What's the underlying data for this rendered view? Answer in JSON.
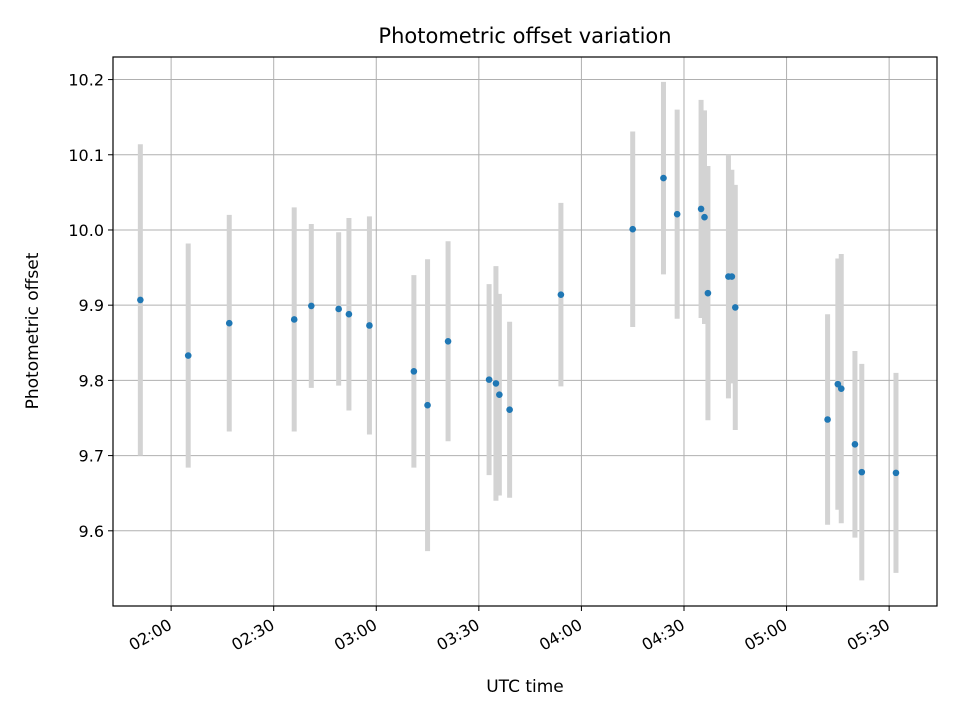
{
  "chart_data": {
    "type": "scatter",
    "title": "Photometric offset variation",
    "xlabel": "UTC time",
    "ylabel": "Photometric offset",
    "x_ticks": [
      "02:00",
      "02:30",
      "03:00",
      "03:30",
      "04:00",
      "04:30",
      "05:00",
      "05:30"
    ],
    "y_ticks": [
      "9.6",
      "9.7",
      "9.8",
      "9.9",
      "10.0",
      "10.1",
      "10.2"
    ],
    "xlim": [
      "01:43",
      "05:44"
    ],
    "ylim": [
      9.5,
      10.23
    ],
    "grid": true,
    "marker_color": "#1f77b4",
    "errorbar_color": "#d3d3d3",
    "series": [
      {
        "points": [
          {
            "t": "01:51",
            "y": 9.907,
            "err": 0.207
          },
          {
            "t": "02:05",
            "y": 9.833,
            "err": 0.149
          },
          {
            "t": "02:17",
            "y": 9.876,
            "err": 0.144
          },
          {
            "t": "02:36",
            "y": 9.881,
            "err": 0.149
          },
          {
            "t": "02:41",
            "y": 9.899,
            "err": 0.109
          },
          {
            "t": "02:49",
            "y": 9.895,
            "err": 0.102
          },
          {
            "t": "02:52",
            "y": 9.888,
            "err": 0.128
          },
          {
            "t": "02:58",
            "y": 9.873,
            "err": 0.145
          },
          {
            "t": "03:11",
            "y": 9.812,
            "err": 0.128
          },
          {
            "t": "03:15",
            "y": 9.767,
            "err": 0.194
          },
          {
            "t": "03:21",
            "y": 9.852,
            "err": 0.133
          },
          {
            "t": "03:33",
            "y": 9.801,
            "err": 0.127
          },
          {
            "t": "03:35",
            "y": 9.796,
            "err": 0.156
          },
          {
            "t": "03:36",
            "y": 9.781,
            "err": 0.134
          },
          {
            "t": "03:39",
            "y": 9.761,
            "err": 0.117
          },
          {
            "t": "03:54",
            "y": 9.914,
            "err": 0.122
          },
          {
            "t": "04:15",
            "y": 10.001,
            "err": 0.13
          },
          {
            "t": "04:24",
            "y": 10.069,
            "err": 0.128
          },
          {
            "t": "04:28",
            "y": 10.021,
            "err": 0.139
          },
          {
            "t": "04:35",
            "y": 10.028,
            "err": 0.145
          },
          {
            "t": "04:36",
            "y": 10.017,
            "err": 0.142
          },
          {
            "t": "04:37",
            "y": 9.916,
            "err": 0.169
          },
          {
            "t": "04:43",
            "y": 9.938,
            "err": 0.162
          },
          {
            "t": "04:44",
            "y": 9.938,
            "err": 0.142
          },
          {
            "t": "04:45",
            "y": 9.897,
            "err": 0.163
          },
          {
            "t": "05:12",
            "y": 9.748,
            "err": 0.14
          },
          {
            "t": "05:15",
            "y": 9.795,
            "err": 0.167
          },
          {
            "t": "05:16",
            "y": 9.789,
            "err": 0.179
          },
          {
            "t": "05:20",
            "y": 9.715,
            "err": 0.124
          },
          {
            "t": "05:22",
            "y": 9.678,
            "err": 0.144
          },
          {
            "t": "05:32",
            "y": 9.677,
            "err": 0.133
          }
        ]
      }
    ]
  }
}
